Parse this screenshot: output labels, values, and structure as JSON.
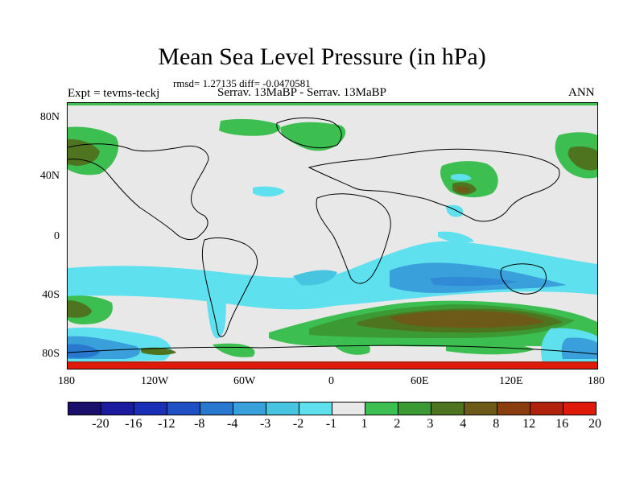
{
  "title": "Mean Sea Level Pressure (in hPa)",
  "stats": "rmsd= 1.27135 diff= -0.0470581",
  "expt": "Expt = tevms-teckj",
  "comparison": "Serrav.   13MaBP - Serrav.   13MaBP",
  "season": "ANN",
  "y_axis_labels": [
    "80N",
    "40N",
    "0",
    "40S",
    "80S"
  ],
  "x_axis_labels": [
    "180",
    "120W",
    "60W",
    "0",
    "60E",
    "120E",
    "180"
  ],
  "colorbar": {
    "labels": [
      "-20",
      "-16",
      "-12",
      "-8",
      "-4",
      "-3",
      "-2",
      "-1",
      "1",
      "2",
      "3",
      "4",
      "8",
      "12",
      "16",
      "20"
    ],
    "colors": [
      "#1a0f6b",
      "#1c1ba0",
      "#1a2fb8",
      "#1e4fc4",
      "#2878d0",
      "#3aa0dc",
      "#46c4e0",
      "#5ee0ee",
      "#e8e8e8",
      "#3cbe50",
      "#3c9a34",
      "#4e7420",
      "#6e5a18",
      "#8a3e10",
      "#b0220c",
      "#e01a0a"
    ]
  },
  "colors": {
    "land_outline": "#000000",
    "background_field": "#e8e8e8"
  }
}
